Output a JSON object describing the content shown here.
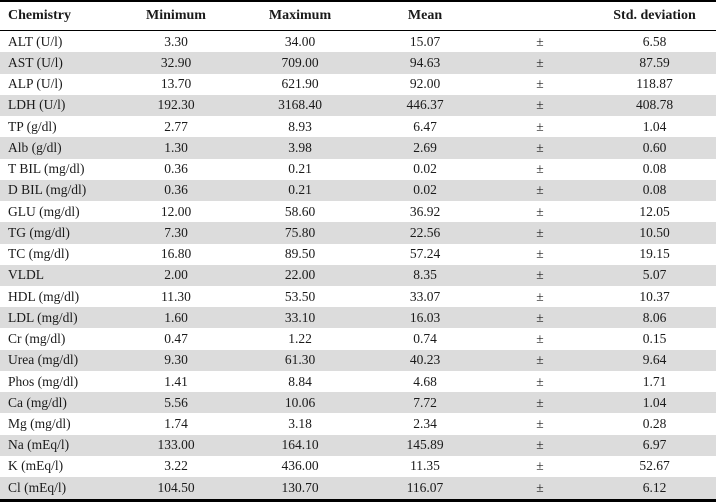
{
  "chart_data": {
    "type": "table",
    "columns": [
      "Chemistry",
      "Minimum",
      "Maximum",
      "Mean",
      "",
      "Std. deviation"
    ],
    "rows": [
      [
        "ALT (U/l)",
        "3.30",
        "34.00",
        "15.07",
        "±",
        "6.58"
      ],
      [
        "AST (U/l)",
        "32.90",
        "709.00",
        "94.63",
        "±",
        "87.59"
      ],
      [
        "ALP (U/l)",
        "13.70",
        "621.90",
        "92.00",
        "±",
        "118.87"
      ],
      [
        "LDH (U/l)",
        "192.30",
        "3168.40",
        "446.37",
        "±",
        "408.78"
      ],
      [
        "TP (g/dl)",
        "2.77",
        "8.93",
        "6.47",
        "±",
        "1.04"
      ],
      [
        "Alb (g/dl)",
        "1.30",
        "3.98",
        "2.69",
        "±",
        "0.60"
      ],
      [
        "T BIL (mg/dl)",
        "0.36",
        "0.21",
        "0.02",
        "±",
        "0.08"
      ],
      [
        "D BIL (mg/dl)",
        "0.36",
        "0.21",
        "0.02",
        "±",
        "0.08"
      ],
      [
        "GLU (mg/dl)",
        "12.00",
        "58.60",
        "36.92",
        "±",
        "12.05"
      ],
      [
        "TG (mg/dl)",
        "7.30",
        "75.80",
        "22.56",
        "±",
        "10.50"
      ],
      [
        "TC (mg/dl)",
        "16.80",
        "89.50",
        "57.24",
        "±",
        "19.15"
      ],
      [
        "VLDL",
        "2.00",
        "22.00",
        "8.35",
        "±",
        "5.07"
      ],
      [
        "HDL (mg/dl)",
        "11.30",
        "53.50",
        "33.07",
        "±",
        "10.37"
      ],
      [
        "LDL (mg/dl)",
        "1.60",
        "33.10",
        "16.03",
        "±",
        "8.06"
      ],
      [
        "Cr (mg/dl)",
        "0.47",
        "1.22",
        "0.74",
        "±",
        "0.15"
      ],
      [
        "Urea (mg/dl)",
        "9.30",
        "61.30",
        "40.23",
        "±",
        "9.64"
      ],
      [
        "Phos (mg/dl)",
        "1.41",
        "8.84",
        "4.68",
        "±",
        "1.71"
      ],
      [
        "Ca (mg/dl)",
        "5.56",
        "10.06",
        "7.72",
        "±",
        "1.04"
      ],
      [
        "Mg (mg/dl)",
        "1.74",
        "3.18",
        "2.34",
        "±",
        "0.28"
      ],
      [
        "Na (mEq/l)",
        "133.00",
        "164.10",
        "145.89",
        "±",
        "6.97"
      ],
      [
        "K (mEq/l)",
        "3.22",
        "436.00",
        "11.35",
        "±",
        "52.67"
      ],
      [
        "Cl (mEq/l)",
        "104.50",
        "130.70",
        "116.07",
        "±",
        "6.12"
      ]
    ]
  },
  "colors": {
    "stripe": "#dcdcdc",
    "border": "#000000",
    "text": "#1a1a1a",
    "background": "#ffffff"
  }
}
